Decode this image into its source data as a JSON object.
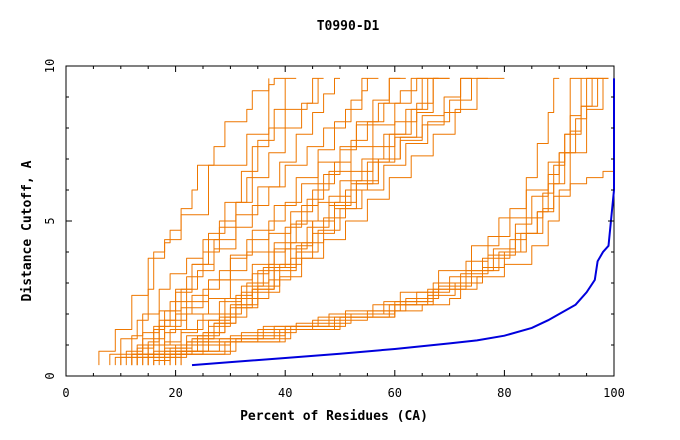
{
  "chart_data": {
    "type": "line",
    "title": "T0990-D1",
    "xlabel": "Percent of Residues (CA)",
    "ylabel": "Distance Cutoff, A",
    "xlim": [
      0,
      100
    ],
    "ylim": [
      0,
      10
    ],
    "xticks": [
      "0",
      "20",
      "40",
      "60",
      "80",
      "100"
    ],
    "yticks": [
      "0",
      "5",
      "10"
    ],
    "grid": false,
    "colors": {
      "highlight": "#0000dd",
      "others": "#ee7700"
    },
    "highlight_series": {
      "x": [
        23,
        30,
        40,
        50,
        60,
        70,
        75,
        80,
        85,
        88,
        90,
        93,
        95,
        96.5,
        97,
        98,
        99,
        100,
        100,
        100
      ],
      "y": [
        0.35,
        0.45,
        0.58,
        0.72,
        0.87,
        1.05,
        1.15,
        1.3,
        1.55,
        1.8,
        2.0,
        2.3,
        2.7,
        3.1,
        3.7,
        4.0,
        4.2,
        6.0,
        8.0,
        9.6
      ]
    },
    "series": [
      {
        "x": [
          6,
          9,
          12,
          15,
          18,
          19,
          21,
          23,
          24,
          27,
          29,
          33,
          34,
          37,
          38,
          40,
          40
        ],
        "y": [
          0.35,
          0.8,
          1.5,
          2.6,
          3.8,
          4.3,
          4.7,
          5.4,
          6.0,
          6.8,
          7.4,
          8.2,
          8.6,
          9.2,
          9.4,
          9.6,
          9.6
        ]
      },
      {
        "x": [
          8,
          10,
          13,
          15,
          16,
          18,
          21,
          26,
          33,
          37,
          37
        ],
        "y": [
          0.35,
          0.7,
          1.2,
          1.8,
          2.8,
          4.0,
          4.4,
          5.2,
          6.8,
          7.8,
          9.6
        ]
      },
      {
        "x": [
          9,
          12,
          14,
          17,
          19,
          22,
          25,
          28,
          31,
          33,
          34,
          37,
          40,
          44,
          46,
          46
        ],
        "y": [
          0.35,
          0.6,
          1.3,
          2.0,
          2.8,
          3.3,
          3.8,
          4.4,
          5.0,
          5.6,
          6.4,
          7.4,
          8.0,
          8.6,
          8.8,
          9.6
        ]
      },
      {
        "x": [
          10,
          13,
          16,
          18,
          21,
          24,
          27,
          31,
          34,
          37,
          40,
          44,
          47,
          51,
          54,
          55,
          55
        ],
        "y": [
          0.35,
          0.6,
          1.0,
          1.5,
          2.1,
          2.8,
          3.4,
          4.1,
          4.8,
          5.5,
          6.1,
          6.8,
          7.4,
          8.0,
          8.6,
          9.2,
          9.6
        ]
      },
      {
        "x": [
          12,
          15,
          18,
          20,
          23,
          26,
          30,
          33,
          37,
          40,
          43,
          46,
          50,
          53,
          57,
          59,
          62
        ],
        "y": [
          0.35,
          0.6,
          1.0,
          1.4,
          2.0,
          2.6,
          3.1,
          3.8,
          4.4,
          5.0,
          5.6,
          6.2,
          6.9,
          7.4,
          8.2,
          8.8,
          9.6
        ]
      },
      {
        "x": [
          12,
          15,
          17,
          21,
          25,
          28,
          33,
          37,
          41,
          45,
          48,
          52,
          56,
          60,
          63,
          65
        ],
        "y": [
          0.35,
          0.7,
          1.1,
          1.6,
          2.2,
          2.8,
          3.4,
          4.0,
          4.6,
          5.3,
          6.0,
          6.6,
          7.4,
          8.1,
          8.8,
          9.6
        ]
      },
      {
        "x": [
          13,
          16,
          19,
          22,
          26,
          30,
          34,
          38,
          42,
          46,
          50,
          54,
          58,
          62,
          65,
          68
        ],
        "y": [
          0.35,
          0.6,
          1.0,
          1.5,
          2.0,
          2.5,
          3.1,
          3.6,
          4.3,
          5.0,
          5.6,
          6.3,
          7.0,
          7.8,
          8.6,
          9.6
        ]
      },
      {
        "x": [
          14,
          17,
          21,
          24,
          28,
          32,
          36,
          40,
          44,
          48,
          52,
          56,
          60,
          64,
          67,
          70
        ],
        "y": [
          0.35,
          0.6,
          1.0,
          1.4,
          1.8,
          2.4,
          2.9,
          3.5,
          4.1,
          4.8,
          5.5,
          6.2,
          6.9,
          7.7,
          8.5,
          9.6
        ]
      },
      {
        "x": [
          15,
          18,
          21,
          25,
          29,
          33,
          37,
          41,
          45,
          49,
          53,
          57,
          61,
          65,
          69,
          72,
          74
        ],
        "y": [
          0.35,
          0.7,
          1.1,
          1.5,
          2.0,
          2.5,
          3.0,
          3.6,
          4.3,
          5.0,
          5.6,
          6.3,
          7.0,
          7.7,
          8.4,
          9.0,
          9.6
        ]
      },
      {
        "x": [
          15,
          18,
          22,
          26,
          30,
          34,
          38,
          42,
          46,
          50,
          54,
          58,
          62,
          66,
          70,
          74,
          77
        ],
        "y": [
          0.35,
          0.6,
          0.9,
          1.3,
          1.8,
          2.3,
          2.8,
          3.4,
          4.0,
          4.7,
          5.4,
          6.0,
          6.8,
          7.5,
          8.2,
          8.9,
          9.6
        ]
      },
      {
        "x": [
          16,
          19,
          23,
          27,
          31,
          35,
          39,
          43,
          47,
          51,
          55,
          59,
          63,
          67,
          71,
          75,
          80
        ],
        "y": [
          0.35,
          0.5,
          0.9,
          1.2,
          1.7,
          2.2,
          2.7,
          3.2,
          3.8,
          4.4,
          5.0,
          5.7,
          6.4,
          7.1,
          7.8,
          8.6,
          9.6
        ]
      },
      {
        "x": [
          17,
          21,
          25,
          29,
          33,
          37,
          41,
          45,
          49,
          53,
          57,
          61,
          65,
          69,
          72,
          74
        ],
        "y": [
          0.35,
          0.6,
          1.0,
          1.4,
          1.9,
          2.5,
          3.1,
          3.8,
          4.6,
          5.4,
          6.2,
          7.0,
          7.6,
          8.1,
          8.5,
          9.6
        ]
      },
      {
        "x": [
          18,
          22,
          26,
          30,
          34,
          38,
          42,
          45,
          48,
          52,
          56,
          60,
          64,
          67,
          70
        ],
        "y": [
          0.35,
          0.6,
          1.1,
          1.6,
          2.2,
          2.8,
          3.5,
          4.2,
          5.0,
          5.8,
          6.6,
          7.4,
          8.2,
          8.8,
          9.6
        ]
      },
      {
        "x": [
          19,
          23,
          27,
          31,
          35,
          39,
          43,
          47,
          51,
          55,
          59,
          63,
          66,
          68
        ],
        "y": [
          0.35,
          0.7,
          1.2,
          1.7,
          2.3,
          2.9,
          3.6,
          4.3,
          5.1,
          6.0,
          6.9,
          7.8,
          8.6,
          9.6
        ]
      },
      {
        "x": [
          20,
          24,
          28,
          31,
          34,
          37,
          40,
          43,
          46,
          49,
          52,
          55,
          58,
          61,
          64,
          66
        ],
        "y": [
          0.35,
          0.8,
          1.3,
          1.9,
          2.6,
          3.3,
          4.0,
          4.8,
          5.5,
          6.2,
          6.9,
          7.6,
          8.2,
          8.8,
          9.2,
          9.6
        ]
      },
      {
        "x": [
          21,
          25,
          29,
          32,
          35,
          38,
          41,
          44,
          47,
          50,
          53,
          56,
          59,
          61
        ],
        "y": [
          0.35,
          0.8,
          1.4,
          2.0,
          2.7,
          3.4,
          4.1,
          4.9,
          5.7,
          6.5,
          7.3,
          8.1,
          8.9,
          9.6
        ]
      },
      {
        "x": [
          10,
          14,
          18,
          22,
          26,
          30,
          34,
          38,
          42,
          46,
          49,
          52,
          54,
          57
        ],
        "y": [
          0.35,
          0.7,
          1.2,
          1.8,
          2.4,
          3.1,
          3.9,
          4.7,
          5.5,
          6.4,
          7.3,
          8.2,
          8.9,
          9.6
        ]
      },
      {
        "x": [
          11,
          14,
          17,
          20,
          23,
          27,
          31,
          35,
          39,
          42,
          45,
          47,
          49,
          50
        ],
        "y": [
          0.35,
          0.8,
          1.4,
          2.1,
          2.8,
          3.6,
          4.4,
          5.2,
          6.1,
          6.9,
          7.8,
          8.5,
          9.1,
          9.6
        ]
      },
      {
        "x": [
          13,
          16,
          19,
          22,
          25,
          28,
          31,
          34,
          37,
          40,
          43,
          45,
          47
        ],
        "y": [
          0.35,
          0.9,
          1.6,
          2.4,
          3.2,
          4.0,
          4.8,
          5.6,
          6.4,
          7.2,
          8.0,
          8.8,
          9.6
        ]
      },
      {
        "x": [
          14,
          17,
          20,
          23,
          26,
          29,
          32,
          35,
          38,
          40,
          42
        ],
        "y": [
          0.35,
          1.0,
          1.8,
          2.7,
          3.6,
          4.6,
          5.6,
          6.6,
          7.6,
          8.6,
          9.6
        ]
      },
      {
        "x": [
          12,
          20,
          30,
          40,
          50,
          60,
          65,
          70,
          72,
          75,
          80,
          85,
          88,
          90,
          92,
          95,
          98,
          99
        ],
        "y": [
          0.35,
          0.7,
          1.0,
          1.3,
          1.6,
          1.9,
          2.1,
          2.3,
          2.5,
          2.8,
          3.2,
          3.6,
          4.2,
          5.0,
          6.0,
          7.2,
          8.6,
          9.6
        ]
      },
      {
        "x": [
          13,
          22,
          32,
          42,
          52,
          60,
          66,
          71,
          76,
          80,
          84,
          87,
          89,
          91,
          93,
          95,
          97
        ],
        "y": [
          0.35,
          0.7,
          1.1,
          1.4,
          1.7,
          2.0,
          2.3,
          2.6,
          3.0,
          3.5,
          4.0,
          4.6,
          5.4,
          6.2,
          7.2,
          8.3,
          9.6
        ]
      },
      {
        "x": [
          15,
          25,
          35,
          45,
          55,
          62,
          68,
          74,
          79,
          83,
          86,
          88,
          90,
          92,
          94,
          96
        ],
        "y": [
          0.35,
          0.7,
          1.1,
          1.5,
          1.8,
          2.1,
          2.5,
          2.9,
          3.4,
          4.0,
          4.6,
          5.3,
          6.2,
          7.2,
          8.4,
          9.6
        ]
      },
      {
        "x": [
          16,
          26,
          36,
          46,
          56,
          64,
          70,
          76,
          81,
          84,
          87,
          89,
          91,
          92,
          94
        ],
        "y": [
          0.35,
          0.8,
          1.2,
          1.6,
          1.9,
          2.3,
          2.7,
          3.2,
          3.8,
          4.4,
          5.1,
          5.9,
          6.8,
          7.8,
          9.6
        ]
      },
      {
        "x": [
          18,
          28,
          38,
          48,
          58,
          66,
          72,
          77,
          82,
          86,
          89,
          92,
          95,
          98,
          100
        ],
        "y": [
          0.35,
          0.8,
          1.2,
          1.6,
          2.0,
          2.4,
          2.8,
          3.3,
          3.9,
          4.6,
          5.3,
          5.8,
          6.2,
          6.4,
          6.6
        ]
      },
      {
        "x": [
          19,
          29,
          39,
          49,
          59,
          67,
          73,
          78,
          82,
          85,
          88,
          90,
          92,
          94,
          96,
          98
        ],
        "y": [
          0.35,
          0.7,
          1.1,
          1.5,
          1.9,
          2.3,
          2.8,
          3.4,
          4.1,
          4.9,
          5.8,
          6.5,
          7.2,
          7.9,
          8.7,
          9.6
        ]
      },
      {
        "x": [
          20,
          30,
          40,
          50,
          60,
          67,
          73,
          77,
          81,
          84,
          86,
          88,
          89,
          90
        ],
        "y": [
          0.35,
          0.7,
          1.1,
          1.5,
          1.9,
          2.4,
          3.0,
          3.7,
          4.5,
          5.4,
          6.4,
          7.5,
          8.5,
          9.6
        ]
      },
      {
        "x": [
          21,
          31,
          41,
          51,
          61,
          68,
          74,
          79,
          84,
          88,
          91,
          94,
          97,
          99
        ],
        "y": [
          0.35,
          0.8,
          1.2,
          1.6,
          2.1,
          2.7,
          3.4,
          4.2,
          5.1,
          6.0,
          6.9,
          7.8,
          8.7,
          9.6
        ]
      }
    ]
  }
}
